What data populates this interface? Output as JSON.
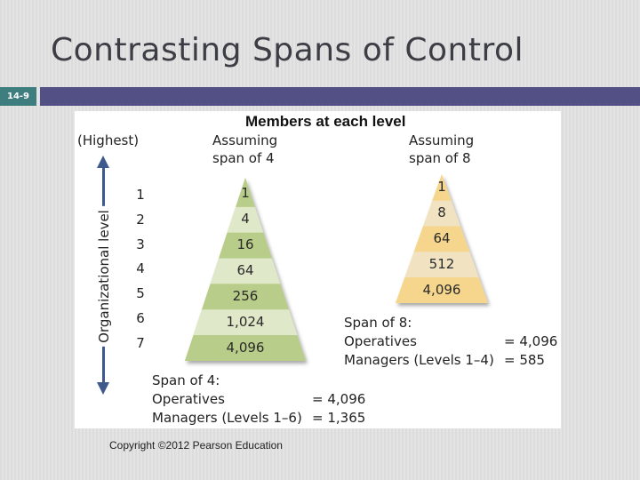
{
  "slide": {
    "title": "Contrasting Spans of Control",
    "number": "14-9",
    "copyright": "Copyright ©2012 Pearson Education",
    "colors": {
      "header_bar": "#525085",
      "slide_num_bg": "#3e7e7e",
      "title_text": "#3d3d45"
    }
  },
  "figure": {
    "heading": "Members at each level",
    "axis": {
      "top_label": "(Highest)",
      "label": "Organizational level",
      "levels": [
        "1",
        "2",
        "3",
        "4",
        "5",
        "6",
        "7"
      ]
    },
    "span4": {
      "caption_line1": "Assuming",
      "caption_line2": "span of 4",
      "values": [
        "1",
        "4",
        "16",
        "64",
        "256",
        "1,024",
        "4,096"
      ],
      "colors": [
        "#b9cd8a",
        "#dfe8c8"
      ],
      "summary_title": "Span of 4:",
      "operatives_label": "Operatives",
      "operatives_value": "= 4,096",
      "managers_label": "Managers (Levels 1–6)",
      "managers_value": "= 1,365"
    },
    "span8": {
      "caption_line1": "Assuming",
      "caption_line2": "span of 8",
      "values": [
        "1",
        "8",
        "64",
        "512",
        "4,096"
      ],
      "colors": [
        "#f5d68c",
        "#f1e3c2"
      ],
      "summary_title": "Span of 8:",
      "operatives_label": "Operatives",
      "operatives_value": "= 4,096",
      "managers_label": "Managers (Levels 1–4)",
      "managers_value": "= 585"
    }
  }
}
